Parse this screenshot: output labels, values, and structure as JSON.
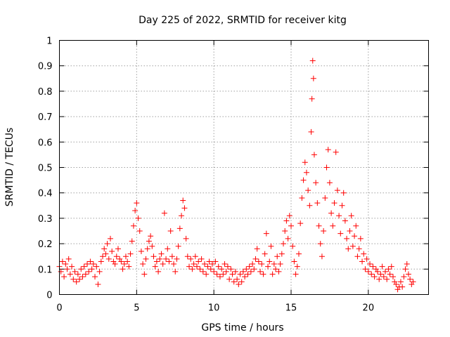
{
  "chart_data": {
    "type": "scatter",
    "title": "Day 225 of 2022, SRMTID for receiver kitg",
    "xlabel": "GPS time / hours",
    "ylabel": "SRMTID / TECUs",
    "xlim": [
      0,
      23.9
    ],
    "ylim": [
      0,
      1
    ],
    "xticks": [
      0,
      5,
      10,
      15,
      20
    ],
    "yticks": [
      0,
      0.1,
      0.2,
      0.3,
      0.4,
      0.5,
      0.6,
      0.7,
      0.8,
      0.9,
      1
    ],
    "xtick_labels": [
      "0",
      "5",
      "10",
      "15",
      "20"
    ],
    "ytick_labels": [
      "0",
      "0.1",
      "0.2",
      "0.3",
      "0.4",
      "0.5",
      "0.6",
      "0.7",
      "0.8",
      "0.9",
      "1"
    ],
    "grid": true,
    "marker": "plus",
    "color": "#ff0000",
    "series": [
      {
        "name": "SRMTID",
        "points": [
          [
            0.0,
            0.11
          ],
          [
            0.1,
            0.09
          ],
          [
            0.2,
            0.13
          ],
          [
            0.3,
            0.07
          ],
          [
            0.4,
            0.12
          ],
          [
            0.5,
            0.1
          ],
          [
            0.6,
            0.14
          ],
          [
            0.7,
            0.08
          ],
          [
            0.8,
            0.11
          ],
          [
            0.9,
            0.06
          ],
          [
            1.0,
            0.09
          ],
          [
            1.1,
            0.05
          ],
          [
            1.2,
            0.08
          ],
          [
            1.3,
            0.06
          ],
          [
            1.4,
            0.1
          ],
          [
            1.5,
            0.07
          ],
          [
            1.6,
            0.11
          ],
          [
            1.7,
            0.08
          ],
          [
            1.8,
            0.12
          ],
          [
            1.9,
            0.09
          ],
          [
            2.0,
            0.13
          ],
          [
            2.1,
            0.1
          ],
          [
            2.2,
            0.12
          ],
          [
            2.3,
            0.07
          ],
          [
            2.4,
            0.11
          ],
          [
            2.5,
            0.04
          ],
          [
            2.6,
            0.09
          ],
          [
            2.7,
            0.13
          ],
          [
            2.8,
            0.15
          ],
          [
            2.9,
            0.18
          ],
          [
            3.0,
            0.16
          ],
          [
            3.1,
            0.2
          ],
          [
            3.2,
            0.14
          ],
          [
            3.3,
            0.22
          ],
          [
            3.4,
            0.17
          ],
          [
            3.5,
            0.13
          ],
          [
            3.6,
            0.12
          ],
          [
            3.7,
            0.15
          ],
          [
            3.8,
            0.18
          ],
          [
            3.9,
            0.14
          ],
          [
            4.0,
            0.13
          ],
          [
            4.1,
            0.1
          ],
          [
            4.2,
            0.12
          ],
          [
            4.3,
            0.15
          ],
          [
            4.4,
            0.13
          ],
          [
            4.5,
            0.11
          ],
          [
            4.6,
            0.16
          ],
          [
            4.7,
            0.21
          ],
          [
            4.8,
            0.27
          ],
          [
            4.9,
            0.33
          ],
          [
            5.0,
            0.36
          ],
          [
            5.1,
            0.3
          ],
          [
            5.2,
            0.25
          ],
          [
            5.3,
            0.17
          ],
          [
            5.4,
            0.12
          ],
          [
            5.5,
            0.08
          ],
          [
            5.6,
            0.14
          ],
          [
            5.7,
            0.18
          ],
          [
            5.8,
            0.21
          ],
          [
            5.9,
            0.23
          ],
          [
            6.0,
            0.19
          ],
          [
            6.1,
            0.15
          ],
          [
            6.2,
            0.11
          ],
          [
            6.3,
            0.13
          ],
          [
            6.4,
            0.09
          ],
          [
            6.5,
            0.14
          ],
          [
            6.6,
            0.16
          ],
          [
            6.7,
            0.12
          ],
          [
            6.8,
            0.32
          ],
          [
            6.9,
            0.14
          ],
          [
            7.0,
            0.18
          ],
          [
            7.1,
            0.13
          ],
          [
            7.2,
            0.25
          ],
          [
            7.3,
            0.15
          ],
          [
            7.4,
            0.12
          ],
          [
            7.5,
            0.09
          ],
          [
            7.6,
            0.14
          ],
          [
            7.7,
            0.19
          ],
          [
            7.8,
            0.26
          ],
          [
            7.9,
            0.31
          ],
          [
            8.0,
            0.37
          ],
          [
            8.1,
            0.34
          ],
          [
            8.2,
            0.22
          ],
          [
            8.3,
            0.15
          ],
          [
            8.4,
            0.11
          ],
          [
            8.5,
            0.14
          ],
          [
            8.6,
            0.1
          ],
          [
            8.7,
            0.12
          ],
          [
            8.8,
            0.15
          ],
          [
            8.9,
            0.11
          ],
          [
            9.0,
            0.13
          ],
          [
            9.1,
            0.1
          ],
          [
            9.2,
            0.14
          ],
          [
            9.3,
            0.09
          ],
          [
            9.4,
            0.12
          ],
          [
            9.5,
            0.08
          ],
          [
            9.6,
            0.11
          ],
          [
            9.7,
            0.13
          ],
          [
            9.8,
            0.1
          ],
          [
            9.9,
            0.12
          ],
          [
            10.0,
            0.09
          ],
          [
            10.1,
            0.13
          ],
          [
            10.2,
            0.08
          ],
          [
            10.3,
            0.11
          ],
          [
            10.4,
            0.07
          ],
          [
            10.5,
            0.1
          ],
          [
            10.6,
            0.08
          ],
          [
            10.7,
            0.12
          ],
          [
            10.8,
            0.09
          ],
          [
            10.9,
            0.11
          ],
          [
            11.0,
            0.06
          ],
          [
            11.1,
            0.1
          ],
          [
            11.2,
            0.08
          ],
          [
            11.3,
            0.05
          ],
          [
            11.4,
            0.09
          ],
          [
            11.5,
            0.06
          ],
          [
            11.6,
            0.04
          ],
          [
            11.7,
            0.08
          ],
          [
            11.8,
            0.05
          ],
          [
            11.9,
            0.09
          ],
          [
            12.0,
            0.07
          ],
          [
            12.1,
            0.1
          ],
          [
            12.2,
            0.08
          ],
          [
            12.3,
            0.11
          ],
          [
            12.4,
            0.09
          ],
          [
            12.5,
            0.12
          ],
          [
            12.6,
            0.1
          ],
          [
            12.7,
            0.14
          ],
          [
            12.8,
            0.18
          ],
          [
            12.9,
            0.13
          ],
          [
            13.0,
            0.09
          ],
          [
            13.1,
            0.12
          ],
          [
            13.2,
            0.08
          ],
          [
            13.3,
            0.16
          ],
          [
            13.4,
            0.24
          ],
          [
            13.5,
            0.11
          ],
          [
            13.6,
            0.13
          ],
          [
            13.7,
            0.19
          ],
          [
            13.8,
            0.08
          ],
          [
            13.9,
            0.12
          ],
          [
            14.0,
            0.1
          ],
          [
            14.1,
            0.15
          ],
          [
            14.2,
            0.09
          ],
          [
            14.3,
            0.12
          ],
          [
            14.4,
            0.16
          ],
          [
            14.5,
            0.2
          ],
          [
            14.6,
            0.25
          ],
          [
            14.7,
            0.29
          ],
          [
            14.8,
            0.22
          ],
          [
            14.9,
            0.31
          ],
          [
            15.0,
            0.27
          ],
          [
            15.1,
            0.19
          ],
          [
            15.2,
            0.13
          ],
          [
            15.3,
            0.08
          ],
          [
            15.4,
            0.11
          ],
          [
            15.5,
            0.16
          ],
          [
            15.6,
            0.28
          ],
          [
            15.7,
            0.38
          ],
          [
            15.8,
            0.45
          ],
          [
            15.9,
            0.52
          ],
          [
            16.0,
            0.48
          ],
          [
            16.1,
            0.41
          ],
          [
            16.2,
            0.35
          ],
          [
            16.3,
            0.64
          ],
          [
            16.35,
            0.77
          ],
          [
            16.4,
            0.92
          ],
          [
            16.45,
            0.85
          ],
          [
            16.5,
            0.55
          ],
          [
            16.6,
            0.44
          ],
          [
            16.7,
            0.36
          ],
          [
            16.8,
            0.27
          ],
          [
            16.9,
            0.2
          ],
          [
            17.0,
            0.15
          ],
          [
            17.1,
            0.25
          ],
          [
            17.2,
            0.38
          ],
          [
            17.3,
            0.5
          ],
          [
            17.4,
            0.57
          ],
          [
            17.5,
            0.44
          ],
          [
            17.6,
            0.32
          ],
          [
            17.7,
            0.27
          ],
          [
            17.8,
            0.36
          ],
          [
            17.9,
            0.56
          ],
          [
            18.0,
            0.41
          ],
          [
            18.1,
            0.31
          ],
          [
            18.2,
            0.24
          ],
          [
            18.3,
            0.35
          ],
          [
            18.4,
            0.4
          ],
          [
            18.5,
            0.29
          ],
          [
            18.6,
            0.22
          ],
          [
            18.7,
            0.18
          ],
          [
            18.8,
            0.25
          ],
          [
            18.9,
            0.31
          ],
          [
            19.0,
            0.19
          ],
          [
            19.1,
            0.23
          ],
          [
            19.2,
            0.27
          ],
          [
            19.3,
            0.15
          ],
          [
            19.4,
            0.18
          ],
          [
            19.5,
            0.22
          ],
          [
            19.6,
            0.13
          ],
          [
            19.7,
            0.16
          ],
          [
            19.8,
            0.1
          ],
          [
            19.9,
            0.14
          ],
          [
            20.0,
            0.09
          ],
          [
            20.1,
            0.12
          ],
          [
            20.2,
            0.08
          ],
          [
            20.3,
            0.11
          ],
          [
            20.4,
            0.07
          ],
          [
            20.5,
            0.1
          ],
          [
            20.6,
            0.09
          ],
          [
            20.7,
            0.06
          ],
          [
            20.8,
            0.08
          ],
          [
            20.9,
            0.11
          ],
          [
            21.0,
            0.07
          ],
          [
            21.1,
            0.09
          ],
          [
            21.2,
            0.06
          ],
          [
            21.3,
            0.1
          ],
          [
            21.4,
            0.08
          ],
          [
            21.5,
            0.11
          ],
          [
            21.6,
            0.07
          ],
          [
            21.7,
            0.05
          ],
          [
            21.8,
            0.04
          ],
          [
            21.9,
            0.02
          ],
          [
            22.0,
            0.03
          ],
          [
            22.1,
            0.05
          ],
          [
            22.2,
            0.03
          ],
          [
            22.3,
            0.07
          ],
          [
            22.4,
            0.1
          ],
          [
            22.5,
            0.12
          ],
          [
            22.6,
            0.08
          ],
          [
            22.7,
            0.06
          ],
          [
            22.8,
            0.04
          ],
          [
            22.9,
            0.05
          ]
        ]
      }
    ]
  }
}
